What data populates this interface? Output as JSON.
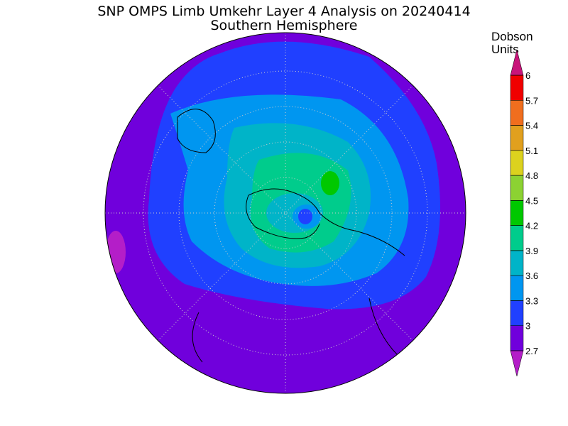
{
  "chart_data": {
    "type": "contour-map",
    "title": "SNP OMPS Limb Umkehr Layer 4 Analysis on 20240414",
    "subtitle": "Southern Hemisphere",
    "colorbar": {
      "label": [
        "Dobson",
        "Units"
      ],
      "ticks": [
        2.7,
        3,
        3.3,
        3.6,
        3.9,
        4.2,
        4.5,
        4.8,
        5.1,
        5.4,
        5.7,
        6
      ],
      "colors": [
        "#b41ec8",
        "#7000dc",
        "#2040ff",
        "#0096f0",
        "#00b4c8",
        "#00cc8c",
        "#00c800",
        "#8cd232",
        "#dcd21e",
        "#e1a01e",
        "#f06e1e",
        "#f00000",
        "#c8147a"
      ]
    }
  }
}
